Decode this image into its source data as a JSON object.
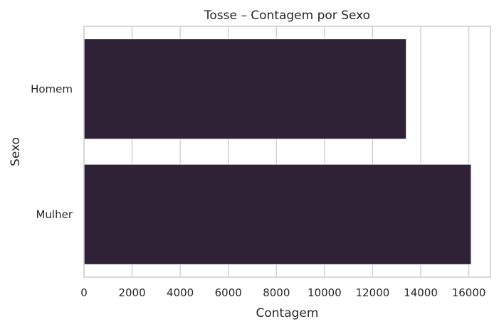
{
  "chart_data": {
    "type": "bar",
    "orientation": "horizontal",
    "title": "Tosse – Contagem por Sexo",
    "xlabel": "Contagem",
    "ylabel": "Sexo",
    "categories": [
      "Homem",
      "Mulher"
    ],
    "values": [
      13400,
      16100
    ],
    "xlim": [
      0,
      16900
    ],
    "xticks": [
      0,
      2000,
      4000,
      6000,
      8000,
      10000,
      12000,
      14000,
      16000
    ],
    "grid": "vertical",
    "bar_color": "#302236"
  }
}
